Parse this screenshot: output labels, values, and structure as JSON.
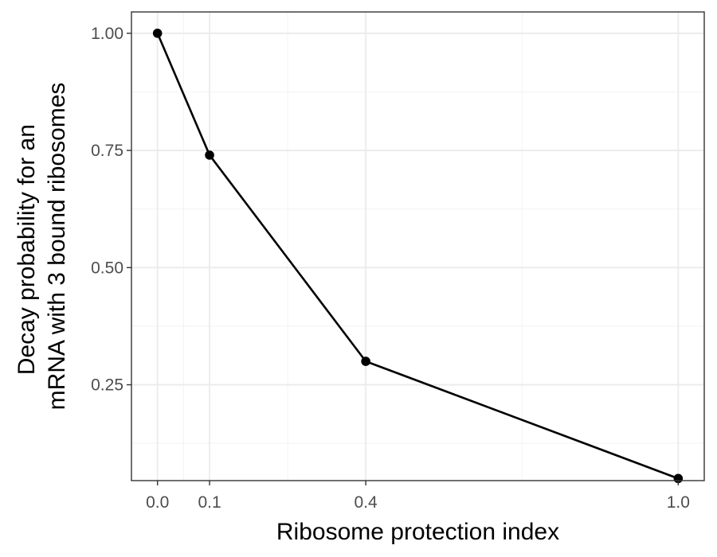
{
  "chart_data": {
    "type": "line",
    "xlabel": "Ribosome protection index",
    "ylabel_lines": [
      "Decay probability for an",
      "mRNA with 3 bound ribosomes"
    ],
    "x_ticks": [
      0.0,
      0.1,
      0.4,
      1.0
    ],
    "x_tick_labels": [
      "0.0",
      "0.1",
      "0.4",
      "1.0"
    ],
    "y_ticks": [
      0.25,
      0.5,
      0.75,
      1.0
    ],
    "y_tick_labels": [
      "0.25",
      "0.50",
      "0.75",
      "1.00"
    ],
    "xlim": [
      -0.05,
      1.05
    ],
    "ylim": [
      0.0455,
      1.0455
    ],
    "grid": true,
    "line_color": "#000000",
    "series": [
      {
        "x": [
          0.0,
          0.1,
          0.4,
          1.0
        ],
        "y": [
          1.0,
          0.74,
          0.3,
          0.05
        ]
      }
    ]
  }
}
